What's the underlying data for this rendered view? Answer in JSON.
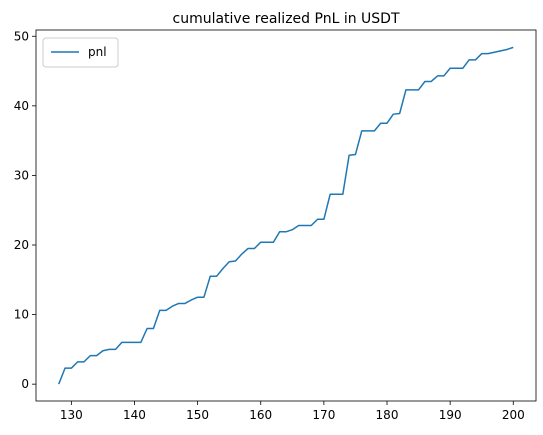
{
  "chart_data": {
    "type": "line",
    "title": "cumulative realized PnL in USDT",
    "xlabel": "",
    "ylabel": "",
    "xlim": [
      124.4,
      203.6
    ],
    "ylim": [
      -2.42,
      50.9
    ],
    "x_ticks": [
      130,
      140,
      150,
      160,
      170,
      180,
      190,
      200
    ],
    "y_ticks": [
      0,
      10,
      20,
      30,
      40,
      50
    ],
    "grid": false,
    "legend": {
      "position": "upper-left",
      "entries": [
        "pnl"
      ]
    },
    "series": [
      {
        "name": "pnl",
        "color": "#1f77b4",
        "x": [
          128,
          129,
          130,
          131,
          132,
          133,
          134,
          135,
          136,
          137,
          138,
          139,
          140,
          141,
          142,
          143,
          144,
          145,
          146,
          147,
          148,
          149,
          150,
          151,
          152,
          153,
          154,
          155,
          156,
          157,
          158,
          159,
          160,
          161,
          162,
          163,
          164,
          165,
          166,
          167,
          168,
          169,
          170,
          171,
          172,
          173,
          174,
          175,
          176,
          177,
          178,
          179,
          180,
          181,
          182,
          183,
          184,
          185,
          186,
          187,
          188,
          189,
          190,
          191,
          192,
          193,
          194,
          195,
          196,
          197,
          198,
          199,
          200
        ],
        "y": [
          0.0,
          2.3,
          2.3,
          3.2,
          3.2,
          4.1,
          4.1,
          4.8,
          5.0,
          5.0,
          6.0,
          6.0,
          6.0,
          6.0,
          8.0,
          8.0,
          10.6,
          10.6,
          11.2,
          11.6,
          11.6,
          12.1,
          12.5,
          12.5,
          15.5,
          15.5,
          16.6,
          17.6,
          17.7,
          18.7,
          19.5,
          19.5,
          20.4,
          20.4,
          20.4,
          21.9,
          21.9,
          22.2,
          22.8,
          22.8,
          22.8,
          23.7,
          23.7,
          27.3,
          27.3,
          27.3,
          32.9,
          33.0,
          36.4,
          36.4,
          36.4,
          37.5,
          37.5,
          38.8,
          38.9,
          42.3,
          42.3,
          42.3,
          43.5,
          43.5,
          44.3,
          44.3,
          45.4,
          45.4,
          45.4,
          46.6,
          46.6,
          47.5,
          47.5,
          47.7,
          47.9,
          48.1,
          48.4
        ]
      }
    ]
  }
}
